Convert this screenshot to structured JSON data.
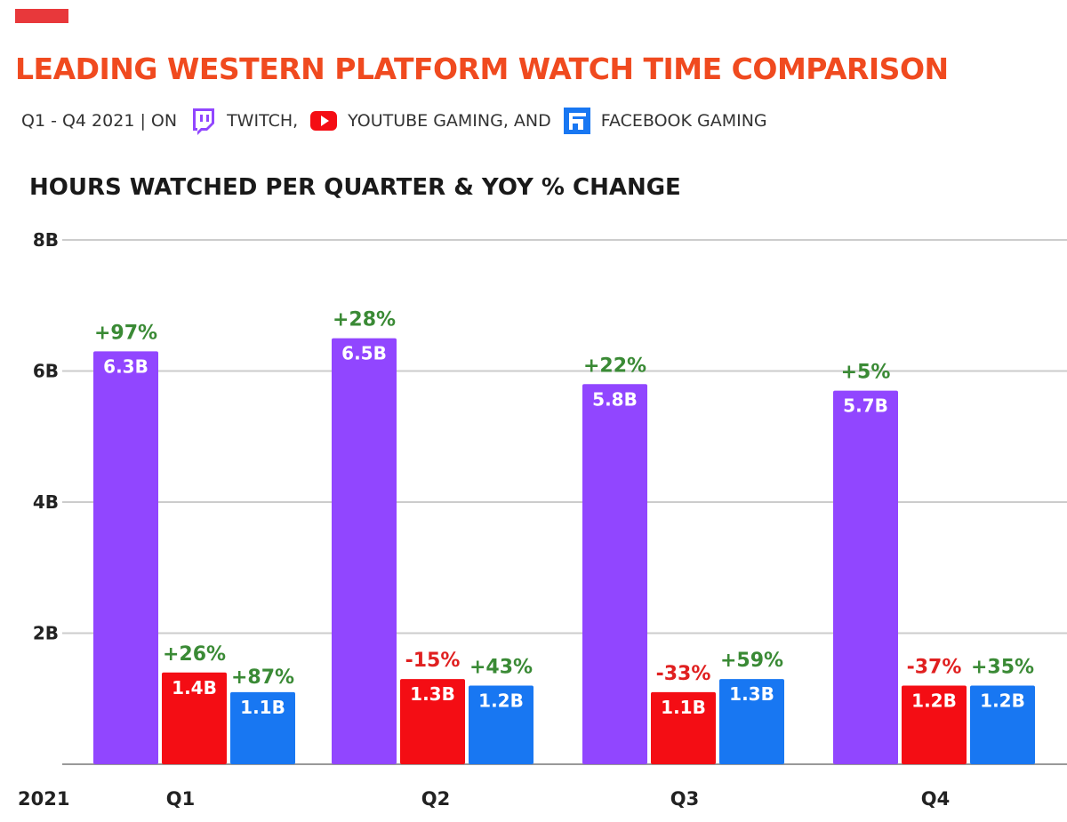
{
  "header": {
    "title": "LEADING WESTERN PLATFORM WATCH TIME COMPARISON",
    "subtitle_prefix": "Q1  - Q4 2021 | ON",
    "twitch_label": "TWITCH,",
    "youtube_label": "YOUTUBE GAMING, AND",
    "facebook_label": "FACEBOOK GAMING",
    "icons": [
      "twitch-icon",
      "youtube-icon",
      "facebook-gaming-icon"
    ],
    "chart_heading": "HOURS WATCHED PER QUARTER & YOY % CHANGE"
  },
  "colors": {
    "accent": "#e8383b",
    "title": "#f04a1f",
    "twitch": "#9146ff",
    "youtube": "#f40d14",
    "facebook": "#1877f2",
    "positive": "#3a8a35",
    "negative": "#e02020",
    "grid": "#cccccc"
  },
  "chart_data": {
    "type": "bar",
    "title": "HOURS WATCHED PER QUARTER & YOY % CHANGE",
    "year_label": "2021",
    "categories": [
      "Q1",
      "Q2",
      "Q3",
      "Q4"
    ],
    "ylim": [
      0,
      8
    ],
    "yticks": [
      {
        "value": 2,
        "label": "2B"
      },
      {
        "value": 4,
        "label": "4B"
      },
      {
        "value": 6,
        "label": "6B"
      },
      {
        "value": 8,
        "label": "8B"
      }
    ],
    "grid": true,
    "series": [
      {
        "name": "TWITCH",
        "color": "#9146ff",
        "values": [
          6.3,
          6.5,
          5.8,
          5.7
        ],
        "value_labels": [
          "6.3B",
          "6.5B",
          "5.8B",
          "5.7B"
        ],
        "yoy_labels": [
          "+97%",
          "+28%",
          "+22%",
          "+5%"
        ]
      },
      {
        "name": "YOUTUBE GAMING",
        "color": "#f40d14",
        "values": [
          1.4,
          1.3,
          1.1,
          1.2
        ],
        "value_labels": [
          "1.4B",
          "1.3B",
          "1.1B",
          "1.2B"
        ],
        "yoy_labels": [
          "+26%",
          "-15%",
          "-33%",
          "-37%"
        ]
      },
      {
        "name": "FACEBOOK GAMING",
        "color": "#1877f2",
        "values": [
          1.1,
          1.2,
          1.3,
          1.2
        ],
        "value_labels": [
          "1.1B",
          "1.2B",
          "1.3B",
          "1.2B"
        ],
        "yoy_labels": [
          "+87%",
          "+43%",
          "+59%",
          "+35%"
        ]
      }
    ]
  }
}
